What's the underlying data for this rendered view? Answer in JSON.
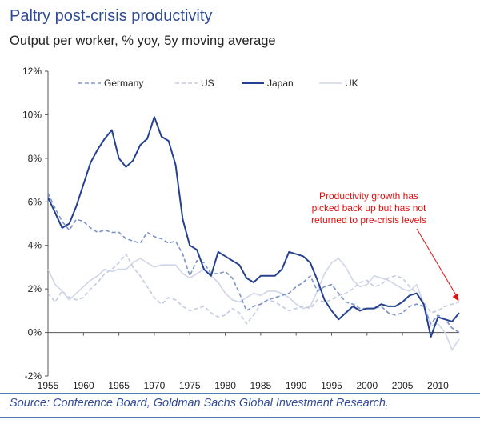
{
  "header": {
    "title": "Paltry post-crisis productivity",
    "subtitle": "Output per worker, % yoy, 5y moving average"
  },
  "footer": {
    "source": "Source: Conference Board, Goldman Sachs Global Investment Research."
  },
  "chart_data": {
    "type": "line",
    "title": "Paltry post-crisis productivity",
    "subtitle": "Output per worker, % yoy, 5y moving average",
    "xlabel": "",
    "ylabel": "",
    "xlim": [
      1955,
      2013
    ],
    "ylim": [
      -2,
      12
    ],
    "x_ticks": [
      1955,
      1960,
      1965,
      1970,
      1975,
      1980,
      1985,
      1990,
      1995,
      2000,
      2005,
      2010
    ],
    "y_ticks": [
      -2,
      0,
      2,
      4,
      6,
      8,
      10,
      12
    ],
    "y_tick_labels": [
      "-2%",
      "0%",
      "2%",
      "4%",
      "6%",
      "8%",
      "10%",
      "12%"
    ],
    "grid": false,
    "legend_position": "top",
    "annotation": {
      "text_lines": [
        "Productivity growth has",
        "picked back up but has not",
        "returned to pre-crisis levels"
      ],
      "color": "#e01010",
      "arrow_target": {
        "x": 2013,
        "y": 1.4
      }
    },
    "x": [
      1955,
      1956,
      1957,
      1958,
      1959,
      1960,
      1961,
      1962,
      1963,
      1964,
      1965,
      1966,
      1967,
      1968,
      1969,
      1970,
      1971,
      1972,
      1973,
      1974,
      1975,
      1976,
      1977,
      1978,
      1979,
      1980,
      1981,
      1982,
      1983,
      1984,
      1985,
      1986,
      1987,
      1988,
      1989,
      1990,
      1991,
      1992,
      1993,
      1994,
      1995,
      1996,
      1997,
      1998,
      1999,
      2000,
      2001,
      2002,
      2003,
      2004,
      2005,
      2006,
      2007,
      2008,
      2009,
      2010,
      2011,
      2012,
      2013
    ],
    "series": [
      {
        "name": "Germany",
        "color": "#7b93c8",
        "style": "dashed",
        "values": [
          6.4,
          5.7,
          5.1,
          4.7,
          5.2,
          5.1,
          4.8,
          4.6,
          4.7,
          4.6,
          4.6,
          4.3,
          4.2,
          4.1,
          4.6,
          4.4,
          4.3,
          4.1,
          4.2,
          3.6,
          2.6,
          3.3,
          3.2,
          2.7,
          2.7,
          2.8,
          2.5,
          1.8,
          1.0,
          1.2,
          1.3,
          1.5,
          1.6,
          1.7,
          1.8,
          2.1,
          2.3,
          2.6,
          1.9,
          2.1,
          2.2,
          1.8,
          1.4,
          1.3,
          1.1,
          1.1,
          1.1,
          1.2,
          0.9,
          0.8,
          0.9,
          1.2,
          1.3,
          1.2,
          0.4,
          0.8,
          0.6,
          0.2,
          0.0
        ]
      },
      {
        "name": "US",
        "color": "#c3cbe2",
        "style": "dashed",
        "values": [
          1.8,
          1.4,
          1.9,
          1.6,
          1.5,
          1.6,
          2.0,
          2.3,
          2.7,
          2.9,
          3.2,
          3.6,
          3.0,
          2.6,
          2.1,
          1.6,
          1.3,
          1.6,
          1.5,
          1.2,
          1.0,
          1.1,
          1.2,
          0.9,
          0.7,
          0.8,
          1.1,
          0.9,
          0.4,
          0.8,
          1.3,
          1.5,
          1.4,
          1.2,
          1.0,
          1.1,
          1.2,
          1.1,
          1.5,
          1.4,
          1.5,
          1.7,
          1.8,
          2.0,
          2.3,
          2.4,
          2.1,
          2.2,
          2.5,
          2.6,
          2.5,
          2.1,
          1.8,
          1.4,
          0.9,
          1.0,
          1.2,
          1.3,
          1.4
        ]
      },
      {
        "name": "Japan",
        "color": "#24418f",
        "style": "solid",
        "values": [
          6.2,
          5.5,
          4.8,
          5.0,
          5.8,
          6.8,
          7.8,
          8.4,
          8.9,
          9.3,
          8.0,
          7.6,
          7.9,
          8.6,
          8.9,
          9.9,
          9.0,
          8.8,
          7.7,
          5.2,
          4.0,
          3.8,
          2.9,
          2.6,
          3.7,
          3.5,
          3.3,
          3.1,
          2.5,
          2.3,
          2.6,
          2.6,
          2.6,
          2.9,
          3.7,
          3.6,
          3.5,
          3.2,
          2.4,
          1.5,
          1.0,
          0.6,
          0.9,
          1.2,
          1.0,
          1.1,
          1.1,
          1.3,
          1.2,
          1.2,
          1.4,
          1.7,
          1.8,
          1.3,
          -0.2,
          0.7,
          0.6,
          0.5,
          0.9
        ]
      },
      {
        "name": "UK",
        "color": "#d0d5e8",
        "style": "solid",
        "values": [
          2.9,
          2.2,
          1.9,
          1.5,
          1.8,
          2.1,
          2.4,
          2.6,
          2.9,
          2.8,
          2.9,
          2.9,
          3.2,
          3.4,
          3.2,
          3.0,
          3.1,
          3.1,
          3.1,
          2.7,
          2.5,
          2.7,
          2.9,
          2.6,
          2.3,
          1.8,
          1.5,
          1.4,
          1.6,
          1.8,
          1.7,
          1.9,
          1.9,
          1.8,
          1.6,
          1.3,
          1.1,
          1.2,
          1.9,
          2.7,
          3.2,
          3.4,
          3.0,
          2.4,
          2.1,
          2.2,
          2.6,
          2.5,
          2.4,
          2.2,
          2.0,
          1.9,
          2.2,
          1.3,
          0.3,
          0.4,
          0.0,
          -0.8,
          -0.3
        ]
      }
    ]
  }
}
